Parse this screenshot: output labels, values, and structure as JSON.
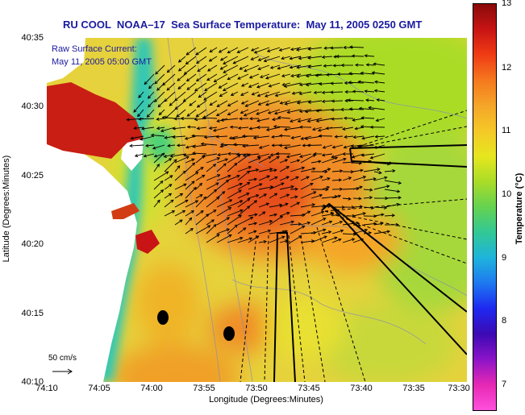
{
  "title": "RU COOL  NOAA–17  Sea Surface Temperature:  May 11, 2005 0250 GMT",
  "overlay": {
    "current_label": "Raw Surface Current:",
    "current_time": "May 11, 2005 05:00 GMT",
    "scale_label": "50 cm/s"
  },
  "axes": {
    "y_label": "Latitude (Degrees:Minutes)",
    "x_label": "Longitude (Degrees:Minutes)",
    "y_ticks": [
      "40:35",
      "40:30",
      "40:25",
      "40:20",
      "40:15",
      "40:10"
    ],
    "x_ticks": [
      "74:10",
      "74:05",
      "74:00",
      "73:55",
      "73:50",
      "73:45",
      "73:40",
      "73:35",
      "73:30"
    ]
  },
  "colorbar": {
    "label": "Temperature (°C)",
    "ticks": [
      "13",
      "12",
      "11",
      "10",
      "9",
      "8",
      "7"
    ],
    "colors": [
      "#8a0a0a",
      "#c81414",
      "#f03c14",
      "#f5781e",
      "#f5a528",
      "#f5c828",
      "#e6e61e",
      "#aadc28",
      "#64d250",
      "#32c896",
      "#1eb4dc",
      "#1e78f0",
      "#1e28f0",
      "#3c0ab4",
      "#8c14c8",
      "#e628b4",
      "#ff50dc"
    ]
  },
  "map": {
    "land_color": "#ffffff",
    "warm_color": "#f08c28",
    "hot_color": "#d22814",
    "mid_color": "#e6d23c",
    "cool_color": "#a0dc50",
    "coast_color": "#32c8c8"
  }
}
